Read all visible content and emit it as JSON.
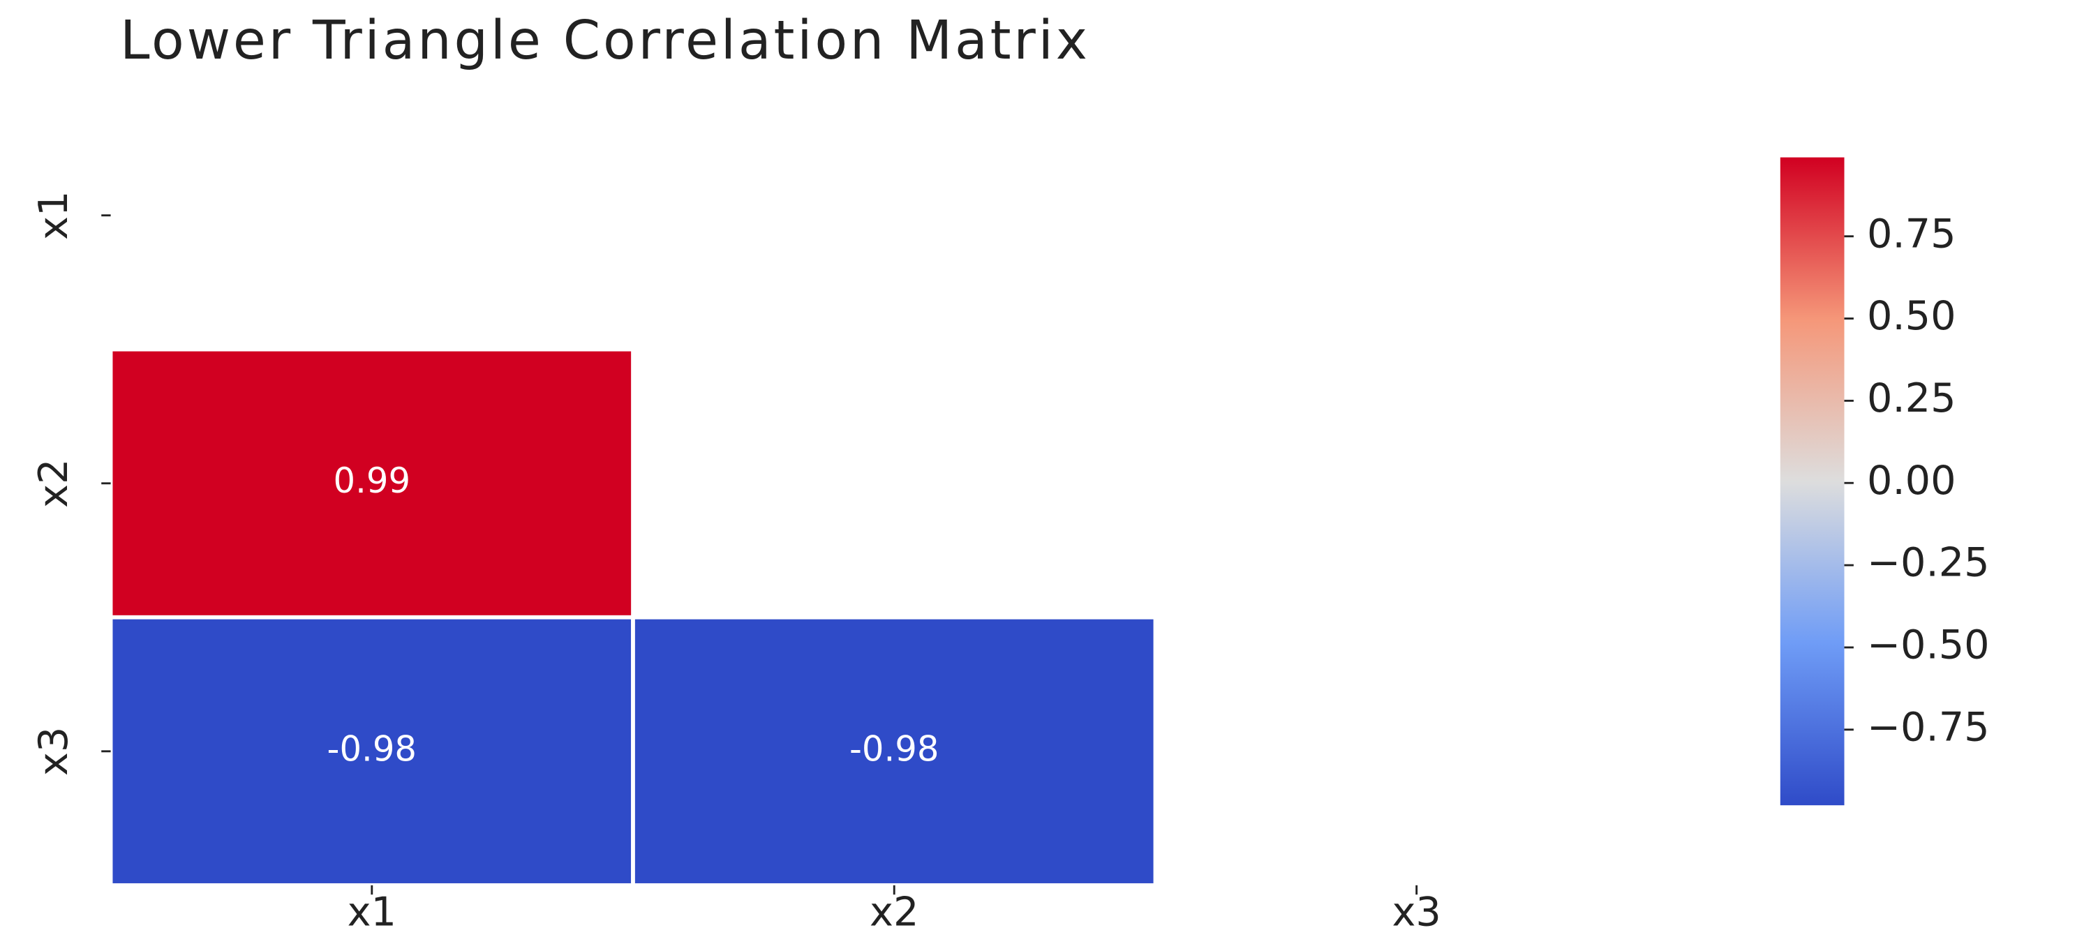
{
  "chart_data": {
    "type": "heatmap",
    "title": "Lower Triangle Correlation Matrix",
    "x": [
      "x1",
      "x2",
      "x3"
    ],
    "y": [
      "x1",
      "x2",
      "x3"
    ],
    "values": [
      [
        null,
        null,
        null
      ],
      [
        0.99,
        null,
        null
      ],
      [
        -0.98,
        -0.98,
        null
      ]
    ],
    "colormap": [
      "#2f4bc8",
      "#6f9cf6",
      "#dddddd",
      "#f59779",
      "#d10021"
    ],
    "clim": [
      -0.98,
      0.99
    ],
    "cticks": [
      {
        "value": -0.75,
        "label": "−0.75"
      },
      {
        "value": -0.5,
        "label": "−0.50"
      },
      {
        "value": -0.25,
        "label": "−0.25"
      },
      {
        "value": 0,
        "label": "0.00"
      },
      0.25,
      {
        "value": 0.5,
        "label": "0.50"
      },
      0.75
    ]
  }
}
